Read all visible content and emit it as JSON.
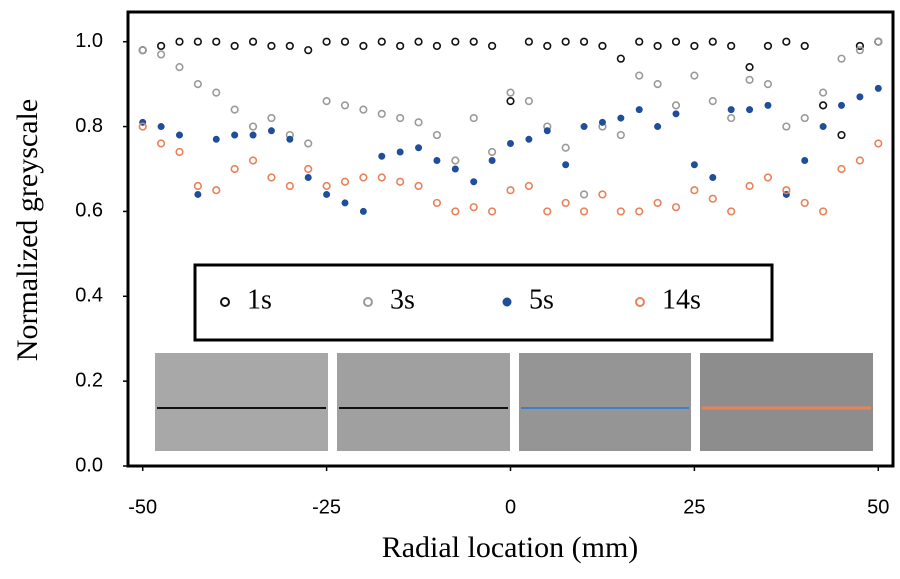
{
  "chart_data": {
    "type": "scatter",
    "xlabel": "Radial location (mm)",
    "ylabel": "Normalized greyscale",
    "xlim": [
      -52,
      52
    ],
    "ylim": [
      0,
      1.07
    ],
    "xticks": [
      -50,
      -25,
      0,
      25,
      50
    ],
    "yticks": [
      {
        "value": 0,
        "label": "0.0"
      },
      0.2,
      0.4,
      0.6,
      0.8,
      {
        "value": 1,
        "label": "1.0"
      }
    ],
    "x": [
      -50,
      -47.5,
      -45,
      -42.5,
      -40,
      -37.5,
      -35,
      -32.5,
      -30,
      -27.5,
      -25,
      -22.5,
      -20,
      -17.5,
      -15,
      -12.5,
      -10,
      -7.5,
      -5,
      -2.5,
      0,
      2.5,
      5,
      7.5,
      10,
      12.5,
      15,
      17.5,
      20,
      22.5,
      25,
      27.5,
      30,
      32.5,
      35,
      37.5,
      40,
      42.5,
      45,
      47.5,
      50
    ],
    "series": [
      {
        "name": "1s",
        "color": "#111111",
        "filled": false,
        "values": [
          0.98,
          0.99,
          1.0,
          1.0,
          1.0,
          0.99,
          1.0,
          0.99,
          0.99,
          0.98,
          1.0,
          1.0,
          0.99,
          1.0,
          0.99,
          1.0,
          0.99,
          1.0,
          1.0,
          0.99,
          0.86,
          1.0,
          0.99,
          1.0,
          1.0,
          0.99,
          0.96,
          1.0,
          0.99,
          1.0,
          0.99,
          1.0,
          0.99,
          0.94,
          0.99,
          1.0,
          0.99,
          0.85,
          0.78,
          0.99,
          1.0
        ]
      },
      {
        "name": "3s",
        "color": "#9a9a9a",
        "filled": false,
        "values": [
          0.98,
          0.97,
          0.94,
          0.9,
          0.88,
          0.84,
          0.8,
          0.82,
          0.78,
          0.76,
          0.86,
          0.85,
          0.84,
          0.83,
          0.82,
          0.81,
          0.78,
          0.72,
          0.82,
          0.74,
          0.88,
          0.86,
          0.8,
          0.75,
          0.64,
          0.8,
          0.78,
          0.92,
          0.9,
          0.85,
          0.92,
          0.86,
          0.82,
          0.91,
          0.9,
          0.8,
          0.82,
          0.88,
          0.96,
          0.98,
          1.0
        ]
      },
      {
        "name": "5s",
        "color": "#1f4e9a",
        "filled": true,
        "values": [
          0.81,
          0.8,
          0.78,
          0.64,
          0.77,
          0.78,
          0.78,
          0.79,
          0.77,
          0.68,
          0.64,
          0.62,
          0.6,
          0.73,
          0.74,
          0.75,
          0.72,
          0.7,
          0.67,
          0.72,
          0.76,
          0.77,
          0.79,
          0.71,
          0.8,
          0.81,
          0.82,
          0.84,
          0.8,
          0.83,
          0.71,
          0.68,
          0.84,
          0.84,
          0.85,
          0.64,
          0.72,
          0.8,
          0.85,
          0.87,
          0.89
        ]
      },
      {
        "name": "14s",
        "color": "#e8825a",
        "filled": false,
        "values": [
          0.8,
          0.76,
          0.74,
          0.66,
          0.65,
          0.7,
          0.72,
          0.68,
          0.66,
          0.7,
          0.66,
          0.67,
          0.68,
          0.68,
          0.67,
          0.66,
          0.62,
          0.6,
          0.61,
          0.6,
          0.65,
          0.66,
          0.6,
          0.62,
          0.6,
          0.64,
          0.6,
          0.6,
          0.62,
          0.61,
          0.65,
          0.63,
          0.6,
          0.66,
          0.68,
          0.65,
          0.62,
          0.6,
          0.7,
          0.72,
          0.76
        ]
      }
    ]
  }
}
